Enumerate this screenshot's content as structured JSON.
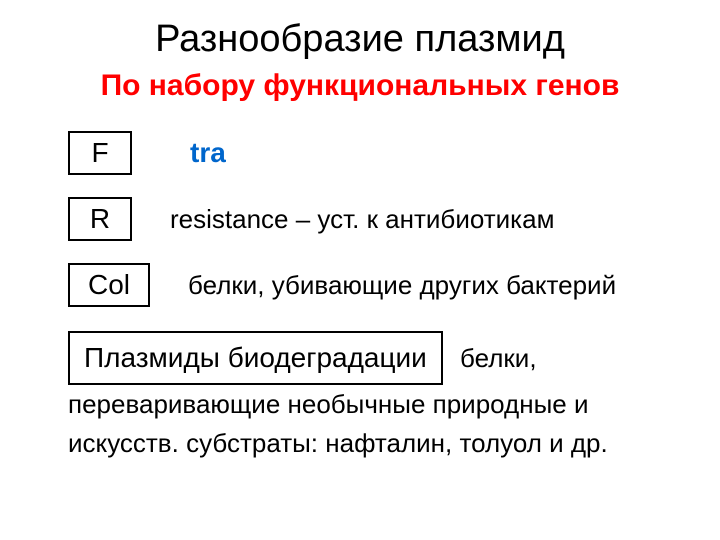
{
  "title": "Разнообразие плазмид",
  "subtitle": "По набору функциональных генов",
  "rows": [
    {
      "box": "F",
      "desc": "tra",
      "descStyle": "tra"
    },
    {
      "box": "R",
      "desc": "resistance – уст. к антибиотикам",
      "descStyle": "desc"
    },
    {
      "box": "Col",
      "desc": "белки, убивающие других бактерий",
      "descStyle": "desc"
    }
  ],
  "bio_box": "Плазмиды биодеградации",
  "bio_text_after": " белки, переваривающие необычные природные и искусств. субстраты: нафталин, толуол и др.",
  "colors": {
    "title": "#000000",
    "subtitle": "#ff0000",
    "tra": "#0066cc",
    "text": "#000000",
    "border": "#000000",
    "background": "#ffffff"
  }
}
